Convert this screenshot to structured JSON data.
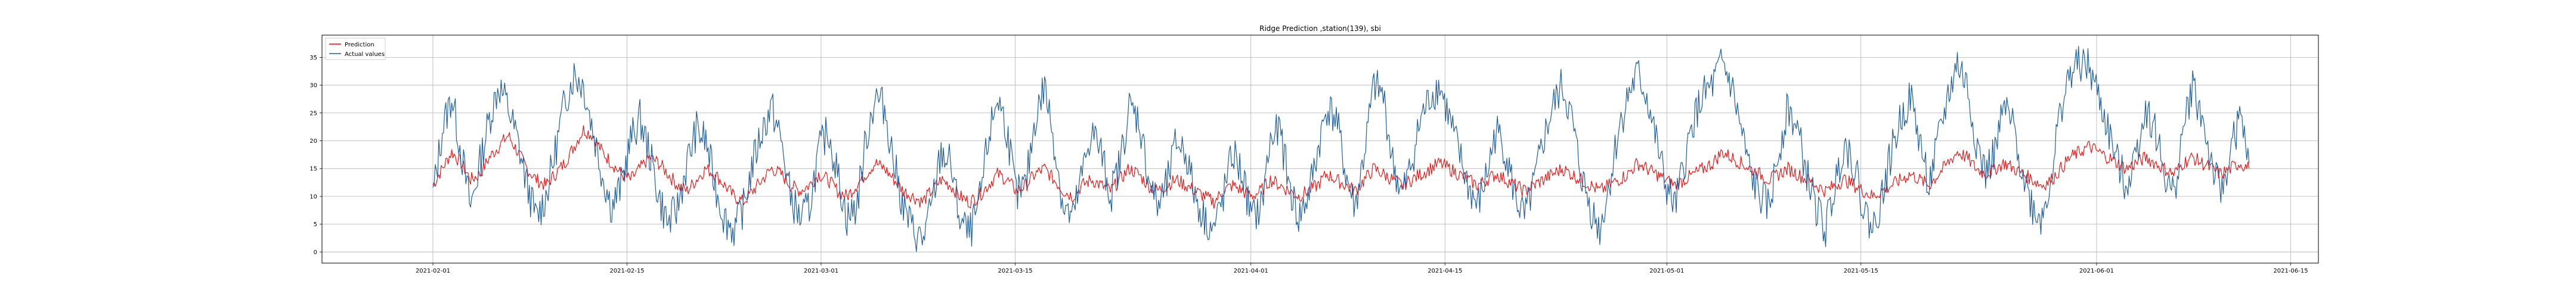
{
  "chart_data": {
    "type": "line",
    "title": "Ridge Prediction ,station(139), sbi",
    "xlabel": "",
    "ylabel": "",
    "x_ticks": [
      "2021-02-01",
      "2021-02-15",
      "2021-03-01",
      "2021-03-15",
      "2021-04-01",
      "2021-04-15",
      "2021-05-01",
      "2021-05-15",
      "2021-06-01",
      "2021-06-15"
    ],
    "y_ticks": [
      0,
      5,
      10,
      15,
      20,
      25,
      30,
      35
    ],
    "xlim": [
      "2021-01-24",
      "2021-06-17"
    ],
    "ylim": [
      -2,
      39
    ],
    "grid": true,
    "legend_position": "top-left",
    "x_start": "2021-02-01",
    "x_end": "2021-06-12",
    "series": [
      {
        "name": "Prediction",
        "color": "#ff0000",
        "values": [
          12,
          15,
          18,
          16,
          13,
          14,
          17,
          19,
          21,
          18,
          15,
          13,
          12,
          14,
          16,
          19,
          22,
          21,
          18,
          16,
          14,
          13,
          15,
          17,
          16,
          14,
          12,
          11,
          13,
          15,
          14,
          12,
          10,
          9,
          11,
          13,
          15,
          14,
          12,
          11,
          12,
          14,
          13,
          11,
          10,
          12,
          14,
          16,
          15,
          13,
          11,
          10,
          9,
          11,
          13,
          12,
          10,
          9,
          10,
          12,
          14,
          13,
          11,
          12,
          14,
          15,
          13,
          11,
          10,
          12,
          13,
          12,
          11,
          13,
          15,
          14,
          12,
          11,
          12,
          13,
          12,
          11,
          10,
          9,
          11,
          12,
          11,
          10,
          11,
          13,
          12,
          11,
          10,
          11,
          12,
          14,
          13,
          12,
          11,
          13,
          15,
          14,
          13,
          12,
          13,
          14,
          15,
          16,
          15,
          14,
          13,
          12,
          13,
          14,
          13,
          12,
          11,
          12,
          13,
          14,
          15,
          14,
          13,
          12,
          11,
          12,
          13,
          14,
          16,
          15,
          14,
          13,
          12,
          13,
          14,
          15,
          16,
          18,
          17,
          16,
          15,
          14,
          13,
          14,
          15,
          14,
          13,
          12,
          11,
          12,
          13,
          12,
          11,
          10,
          11,
          12,
          13,
          14,
          13,
          12,
          14,
          16,
          18,
          17,
          15,
          14,
          15,
          16,
          15,
          14,
          13,
          12,
          13,
          15,
          17,
          18,
          19,
          18,
          17,
          16,
          15,
          16,
          17,
          16,
          15,
          14,
          16,
          17,
          16,
          15,
          14,
          15,
          16,
          15
        ]
      },
      {
        "name": "Actual values",
        "color": "#1f5fa0",
        "values": [
          10,
          22,
          28,
          18,
          8,
          16,
          24,
          30,
          26,
          20,
          12,
          6,
          10,
          18,
          27,
          32,
          30,
          22,
          14,
          8,
          12,
          20,
          24,
          18,
          10,
          5,
          8,
          16,
          22,
          20,
          12,
          6,
          4,
          8,
          16,
          22,
          26,
          20,
          10,
          6,
          8,
          18,
          22,
          14,
          6,
          8,
          20,
          28,
          26,
          16,
          8,
          4,
          2,
          8,
          18,
          16,
          6,
          3,
          8,
          20,
          28,
          22,
          10,
          12,
          24,
          30,
          20,
          8,
          6,
          14,
          22,
          18,
          10,
          16,
          26,
          24,
          14,
          8,
          12,
          20,
          18,
          10,
          6,
          4,
          10,
          18,
          14,
          6,
          8,
          20,
          22,
          12,
          6,
          10,
          18,
          26,
          24,
          14,
          8,
          18,
          30,
          28,
          16,
          10,
          16,
          24,
          28,
          30,
          24,
          18,
          12,
          8,
          14,
          22,
          18,
          10,
          6,
          12,
          20,
          26,
          30,
          24,
          14,
          8,
          4,
          12,
          22,
          28,
          32,
          28,
          20,
          12,
          8,
          16,
          24,
          28,
          30,
          34,
          30,
          22,
          14,
          10,
          8,
          18,
          26,
          22,
          14,
          8,
          4,
          12,
          20,
          16,
          8,
          4,
          10,
          18,
          24,
          28,
          20,
          12,
          20,
          28,
          34,
          30,
          20,
          14,
          18,
          26,
          22,
          14,
          8,
          6,
          14,
          26,
          32,
          34,
          33,
          28,
          22,
          16,
          12,
          18,
          26,
          22,
          14,
          10,
          22,
          30,
          24,
          16,
          10,
          18,
          24,
          16
        ]
      }
    ]
  }
}
